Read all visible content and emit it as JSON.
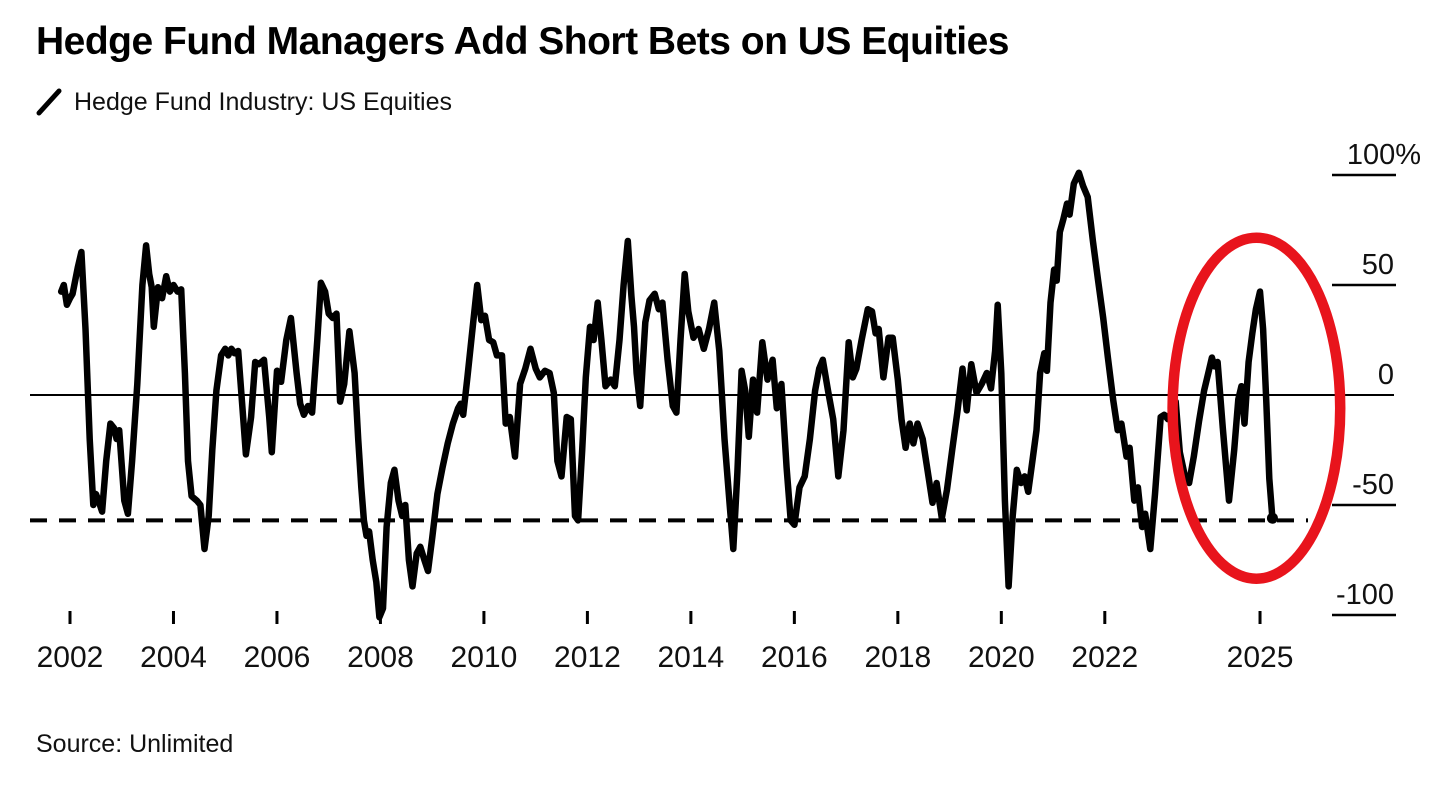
{
  "header": {
    "title": "Hedge Fund Managers Add Short Bets on US Equities",
    "legend": {
      "marker": "slash",
      "series_label": "Hedge Fund Industry: US Equities"
    }
  },
  "footer": {
    "source": "Source: Unlimited"
  },
  "colors": {
    "line": "#000000",
    "axis": "#000000",
    "text": "#111111",
    "annotation_red": "#e8141c",
    "background": "#ffffff"
  },
  "chart_data": {
    "type": "line",
    "title": "Hedge Fund Managers Add Short Bets on US Equities",
    "series_name": "Hedge Fund Industry: US Equities",
    "xlabel": "",
    "ylabel": "",
    "y_axis": {
      "unit": "%",
      "ticks": [
        {
          "value": 100,
          "label": "100%"
        },
        {
          "value": 50,
          "label": "50"
        },
        {
          "value": 0,
          "label": "0"
        },
        {
          "value": -50,
          "label": "-50"
        },
        {
          "value": -100,
          "label": "-100"
        }
      ],
      "range": [
        -115,
        112
      ],
      "grid": false,
      "side": "right"
    },
    "x_axis": {
      "ticks": [
        {
          "value": 2002,
          "label": "2002"
        },
        {
          "value": 2004,
          "label": "2004"
        },
        {
          "value": 2006,
          "label": "2006"
        },
        {
          "value": 2008,
          "label": "2008"
        },
        {
          "value": 2010,
          "label": "2010"
        },
        {
          "value": 2012,
          "label": "2012"
        },
        {
          "value": 2014,
          "label": "2014"
        },
        {
          "value": 2016,
          "label": "2016"
        },
        {
          "value": 2018,
          "label": "2018"
        },
        {
          "value": 2020,
          "label": "2020"
        },
        {
          "value": 2022,
          "label": "2022"
        },
        {
          "value": 2025,
          "label": "2025"
        }
      ],
      "range": [
        2001.2,
        2026.4
      ]
    },
    "reference_lines": {
      "zero_line": 0,
      "dashed_line_value": -57
    },
    "annotation_ellipse": {
      "center_year": 2024.93,
      "center_value": -6,
      "radius_years": 1.62,
      "radius_value": 77.5,
      "meaning": "highlights late-2024/2025 swing down to latest value"
    },
    "end_marker": {
      "year": 2025.24,
      "value": -56
    },
    "points": [
      [
        2001.83,
        47
      ],
      [
        2001.88,
        50
      ],
      [
        2001.94,
        41
      ],
      [
        2002.0,
        44
      ],
      [
        2002.05,
        46
      ],
      [
        2002.15,
        58
      ],
      [
        2002.22,
        65
      ],
      [
        2002.3,
        30
      ],
      [
        2002.38,
        -20
      ],
      [
        2002.45,
        -50
      ],
      [
        2002.5,
        -45
      ],
      [
        2002.55,
        -48
      ],
      [
        2002.62,
        -53
      ],
      [
        2002.7,
        -30
      ],
      [
        2002.78,
        -13
      ],
      [
        2002.85,
        -15
      ],
      [
        2002.9,
        -20
      ],
      [
        2002.95,
        -16
      ],
      [
        2003.05,
        -48
      ],
      [
        2003.12,
        -54
      ],
      [
        2003.2,
        -30
      ],
      [
        2003.3,
        5
      ],
      [
        2003.4,
        50
      ],
      [
        2003.47,
        68
      ],
      [
        2003.53,
        55
      ],
      [
        2003.58,
        49
      ],
      [
        2003.62,
        31
      ],
      [
        2003.7,
        49
      ],
      [
        2003.78,
        44
      ],
      [
        2003.86,
        54
      ],
      [
        2003.93,
        47
      ],
      [
        2004.0,
        50
      ],
      [
        2004.08,
        47
      ],
      [
        2004.15,
        48
      ],
      [
        2004.22,
        10
      ],
      [
        2004.28,
        -30
      ],
      [
        2004.35,
        -46
      ],
      [
        2004.45,
        -48
      ],
      [
        2004.52,
        -50
      ],
      [
        2004.6,
        -70
      ],
      [
        2004.68,
        -55
      ],
      [
        2004.75,
        -25
      ],
      [
        2004.83,
        2
      ],
      [
        2004.92,
        18
      ],
      [
        2005.0,
        21
      ],
      [
        2005.06,
        18
      ],
      [
        2005.12,
        21
      ],
      [
        2005.18,
        19
      ],
      [
        2005.25,
        20
      ],
      [
        2005.33,
        -5
      ],
      [
        2005.4,
        -27
      ],
      [
        2005.5,
        -10
      ],
      [
        2005.58,
        15
      ],
      [
        2005.65,
        14
      ],
      [
        2005.75,
        16
      ],
      [
        2005.85,
        -10
      ],
      [
        2005.9,
        -26
      ],
      [
        2006.0,
        11
      ],
      [
        2006.08,
        6
      ],
      [
        2006.18,
        25
      ],
      [
        2006.27,
        35
      ],
      [
        2006.38,
        10
      ],
      [
        2006.45,
        -4
      ],
      [
        2006.52,
        -9
      ],
      [
        2006.6,
        -5
      ],
      [
        2006.68,
        -8
      ],
      [
        2006.78,
        25
      ],
      [
        2006.85,
        51
      ],
      [
        2006.93,
        47
      ],
      [
        2007.0,
        37
      ],
      [
        2007.08,
        35
      ],
      [
        2007.15,
        37
      ],
      [
        2007.22,
        -3
      ],
      [
        2007.3,
        5
      ],
      [
        2007.4,
        29
      ],
      [
        2007.5,
        10
      ],
      [
        2007.57,
        -20
      ],
      [
        2007.63,
        -42
      ],
      [
        2007.68,
        -57
      ],
      [
        2007.73,
        -64
      ],
      [
        2007.78,
        -62
      ],
      [
        2007.85,
        -75
      ],
      [
        2007.92,
        -85
      ],
      [
        2007.98,
        -101
      ],
      [
        2008.05,
        -97
      ],
      [
        2008.12,
        -60
      ],
      [
        2008.2,
        -40
      ],
      [
        2008.27,
        -34
      ],
      [
        2008.35,
        -48
      ],
      [
        2008.42,
        -55
      ],
      [
        2008.48,
        -50
      ],
      [
        2008.55,
        -75
      ],
      [
        2008.62,
        -87
      ],
      [
        2008.7,
        -72
      ],
      [
        2008.77,
        -69
      ],
      [
        2008.85,
        -75
      ],
      [
        2008.92,
        -80
      ],
      [
        2009.0,
        -65
      ],
      [
        2009.1,
        -45
      ],
      [
        2009.2,
        -33
      ],
      [
        2009.3,
        -22
      ],
      [
        2009.4,
        -13
      ],
      [
        2009.5,
        -6
      ],
      [
        2009.55,
        -4
      ],
      [
        2009.6,
        -9
      ],
      [
        2009.68,
        8
      ],
      [
        2009.78,
        30
      ],
      [
        2009.87,
        50
      ],
      [
        2009.95,
        34
      ],
      [
        2010.02,
        36
      ],
      [
        2010.1,
        25
      ],
      [
        2010.18,
        24
      ],
      [
        2010.25,
        18
      ],
      [
        2010.35,
        18
      ],
      [
        2010.42,
        -13
      ],
      [
        2010.5,
        -10
      ],
      [
        2010.6,
        -28
      ],
      [
        2010.7,
        5
      ],
      [
        2010.8,
        12
      ],
      [
        2010.9,
        21
      ],
      [
        2011.0,
        12
      ],
      [
        2011.08,
        8
      ],
      [
        2011.18,
        11
      ],
      [
        2011.27,
        10
      ],
      [
        2011.35,
        1
      ],
      [
        2011.42,
        -30
      ],
      [
        2011.5,
        -37
      ],
      [
        2011.6,
        -10
      ],
      [
        2011.68,
        -11
      ],
      [
        2011.76,
        -55
      ],
      [
        2011.82,
        -57
      ],
      [
        2011.9,
        -25
      ],
      [
        2011.97,
        8
      ],
      [
        2012.05,
        31
      ],
      [
        2012.12,
        25
      ],
      [
        2012.2,
        42
      ],
      [
        2012.27,
        25
      ],
      [
        2012.35,
        4
      ],
      [
        2012.45,
        7
      ],
      [
        2012.53,
        4
      ],
      [
        2012.62,
        25
      ],
      [
        2012.7,
        50
      ],
      [
        2012.78,
        70
      ],
      [
        2012.85,
        45
      ],
      [
        2012.9,
        31
      ],
      [
        2012.95,
        10
      ],
      [
        2013.02,
        -5
      ],
      [
        2013.12,
        33
      ],
      [
        2013.2,
        43
      ],
      [
        2013.3,
        46
      ],
      [
        2013.38,
        39
      ],
      [
        2013.45,
        42
      ],
      [
        2013.55,
        16
      ],
      [
        2013.65,
        -5
      ],
      [
        2013.72,
        -8
      ],
      [
        2013.8,
        25
      ],
      [
        2013.88,
        55
      ],
      [
        2013.95,
        38
      ],
      [
        2014.05,
        26
      ],
      [
        2014.15,
        30
      ],
      [
        2014.25,
        21
      ],
      [
        2014.35,
        30
      ],
      [
        2014.45,
        42
      ],
      [
        2014.55,
        20
      ],
      [
        2014.65,
        -20
      ],
      [
        2014.75,
        -50
      ],
      [
        2014.82,
        -70
      ],
      [
        2014.9,
        -35
      ],
      [
        2014.98,
        11
      ],
      [
        2015.05,
        2
      ],
      [
        2015.12,
        -19
      ],
      [
        2015.2,
        7
      ],
      [
        2015.28,
        -8
      ],
      [
        2015.38,
        24
      ],
      [
        2015.48,
        7
      ],
      [
        2015.58,
        16
      ],
      [
        2015.66,
        -6
      ],
      [
        2015.75,
        5
      ],
      [
        2015.85,
        -33
      ],
      [
        2015.93,
        -57
      ],
      [
        2016.0,
        -59
      ],
      [
        2016.1,
        -42
      ],
      [
        2016.2,
        -37
      ],
      [
        2016.3,
        -20
      ],
      [
        2016.4,
        2
      ],
      [
        2016.48,
        12
      ],
      [
        2016.55,
        16
      ],
      [
        2016.65,
        2
      ],
      [
        2016.75,
        -11
      ],
      [
        2016.85,
        -37
      ],
      [
        2016.95,
        -16
      ],
      [
        2017.05,
        24
      ],
      [
        2017.13,
        8
      ],
      [
        2017.2,
        12
      ],
      [
        2017.3,
        25
      ],
      [
        2017.42,
        39
      ],
      [
        2017.5,
        38
      ],
      [
        2017.57,
        28
      ],
      [
        2017.63,
        30
      ],
      [
        2017.72,
        8
      ],
      [
        2017.82,
        26
      ],
      [
        2017.9,
        26
      ],
      [
        2018.0,
        7
      ],
      [
        2018.07,
        -11
      ],
      [
        2018.15,
        -24
      ],
      [
        2018.23,
        -13
      ],
      [
        2018.3,
        -22
      ],
      [
        2018.38,
        -13
      ],
      [
        2018.48,
        -20
      ],
      [
        2018.58,
        -35
      ],
      [
        2018.67,
        -49
      ],
      [
        2018.75,
        -40
      ],
      [
        2018.85,
        -56
      ],
      [
        2018.95,
        -43
      ],
      [
        2019.05,
        -25
      ],
      [
        2019.15,
        -8
      ],
      [
        2019.25,
        12
      ],
      [
        2019.33,
        -7
      ],
      [
        2019.42,
        14
      ],
      [
        2019.52,
        1
      ],
      [
        2019.62,
        5
      ],
      [
        2019.72,
        10
      ],
      [
        2019.8,
        3
      ],
      [
        2019.88,
        20
      ],
      [
        2019.93,
        41
      ],
      [
        2020.0,
        10
      ],
      [
        2020.07,
        -48
      ],
      [
        2020.14,
        -87
      ],
      [
        2020.22,
        -55
      ],
      [
        2020.3,
        -34
      ],
      [
        2020.38,
        -40
      ],
      [
        2020.45,
        -37
      ],
      [
        2020.52,
        -44
      ],
      [
        2020.6,
        -30
      ],
      [
        2020.68,
        -16
      ],
      [
        2020.75,
        10
      ],
      [
        2020.83,
        19
      ],
      [
        2020.88,
        11
      ],
      [
        2020.95,
        42
      ],
      [
        2021.02,
        57
      ],
      [
        2021.07,
        52
      ],
      [
        2021.13,
        74
      ],
      [
        2021.2,
        80
      ],
      [
        2021.27,
        87
      ],
      [
        2021.32,
        82
      ],
      [
        2021.4,
        96
      ],
      [
        2021.5,
        101
      ],
      [
        2021.58,
        95
      ],
      [
        2021.67,
        90
      ],
      [
        2021.77,
        70
      ],
      [
        2021.87,
        52
      ],
      [
        2021.97,
        35
      ],
      [
        2022.06,
        17
      ],
      [
        2022.16,
        -2
      ],
      [
        2022.25,
        -16
      ],
      [
        2022.32,
        -13
      ],
      [
        2022.42,
        -28
      ],
      [
        2022.48,
        -24
      ],
      [
        2022.57,
        -48
      ],
      [
        2022.64,
        -42
      ],
      [
        2022.72,
        -60
      ],
      [
        2022.78,
        -54
      ],
      [
        2022.88,
        -70
      ],
      [
        2022.97,
        -45
      ],
      [
        2023.08,
        -10
      ],
      [
        2023.15,
        -9
      ],
      [
        2023.22,
        -11
      ],
      [
        2023.3,
        -7
      ],
      [
        2023.37,
        -3
      ],
      [
        2023.45,
        -26
      ],
      [
        2023.55,
        -37
      ],
      [
        2023.63,
        -40
      ],
      [
        2023.72,
        -28
      ],
      [
        2023.82,
        -12
      ],
      [
        2023.92,
        2
      ],
      [
        2024.0,
        10
      ],
      [
        2024.07,
        17
      ],
      [
        2024.12,
        13
      ],
      [
        2024.18,
        15
      ],
      [
        2024.28,
        -15
      ],
      [
        2024.4,
        -48
      ],
      [
        2024.5,
        -25
      ],
      [
        2024.58,
        -2
      ],
      [
        2024.64,
        4
      ],
      [
        2024.7,
        -13
      ],
      [
        2024.78,
        15
      ],
      [
        2024.85,
        28
      ],
      [
        2024.92,
        39
      ],
      [
        2025.0,
        47
      ],
      [
        2025.06,
        30
      ],
      [
        2025.12,
        -2
      ],
      [
        2025.18,
        -38
      ],
      [
        2025.24,
        -56
      ]
    ]
  }
}
